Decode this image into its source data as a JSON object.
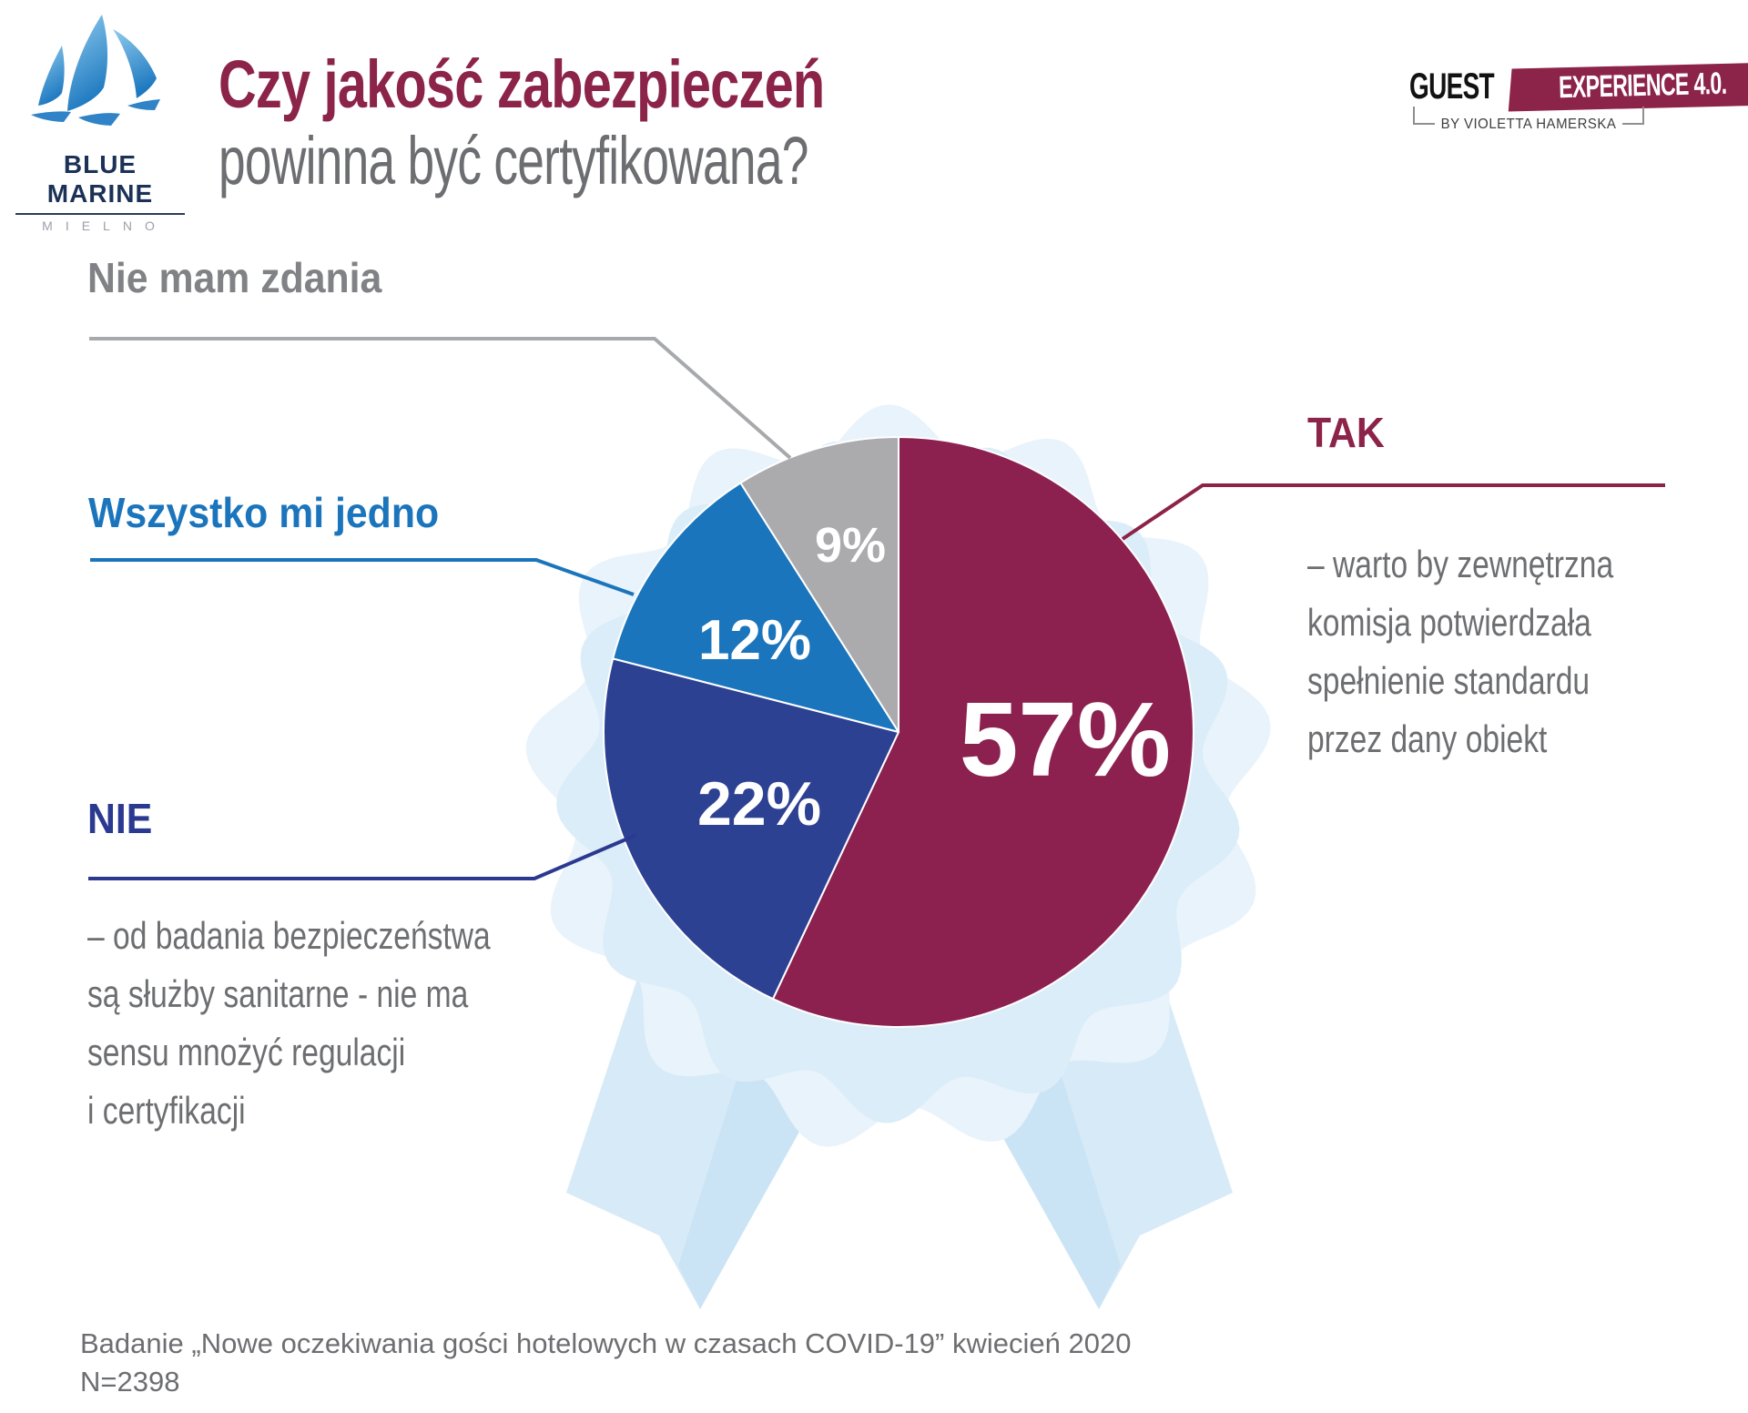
{
  "brand": {
    "name": "BLUE MARINE",
    "city": "MIELNO"
  },
  "badge": {
    "guest": "GUEST",
    "experience": "EXPERIENCE 4.0.",
    "byline": "BY VIOLETTA HAMERSKA"
  },
  "title": {
    "line1": "Czy jakość zabezpieczeń",
    "line2": "powinna być certyfikowana?"
  },
  "chart_data": {
    "type": "pie",
    "title": "Czy jakość zabezpieczeń powinna być certyfikowana?",
    "unit": "%",
    "start_angle_deg": 0,
    "direction": "clockwise",
    "legend_position": "callouts-around-pie",
    "segments": [
      {
        "label": "TAK",
        "value": 57,
        "color": "#8C2150",
        "callout_color": "#8C2348",
        "description": "– warto by zewnętrzna\nkomisja potwierdzała\nspełnienie standardu\nprzez dany obiekt"
      },
      {
        "label": "NIE",
        "value": 22,
        "color": "#2D4193",
        "callout_color": "#2B3990",
        "description": "– od badania bezpieczeństwa\nsą służby sanitarne - nie ma\nsensu mnożyć regulacji\ni certyfikacji"
      },
      {
        "label": "Wszystko mi jedno",
        "value": 12,
        "color": "#1B75BC",
        "callout_color": "#1B75BC",
        "description": ""
      },
      {
        "label": "Nie mam zdania",
        "value": 9,
        "color": "#ABABAE",
        "callout_color": "#808285",
        "description": ""
      }
    ]
  },
  "footer": {
    "line1": "Badanie „Nowe oczekiwania gości hotelowych w czasach COVID-19” kwiecień 2020",
    "line2": "N=2398"
  },
  "colors": {
    "maroon": "#8C2348",
    "pie_maroon": "#8C2150",
    "dark_blue": "#2D4193",
    "light_blue": "#1B75BC",
    "gray_slice": "#ABABAE",
    "text_gray": "#6D6E71",
    "ribbon_light": "#E9F3FB",
    "ribbon_mid": "#D7EAF7"
  }
}
